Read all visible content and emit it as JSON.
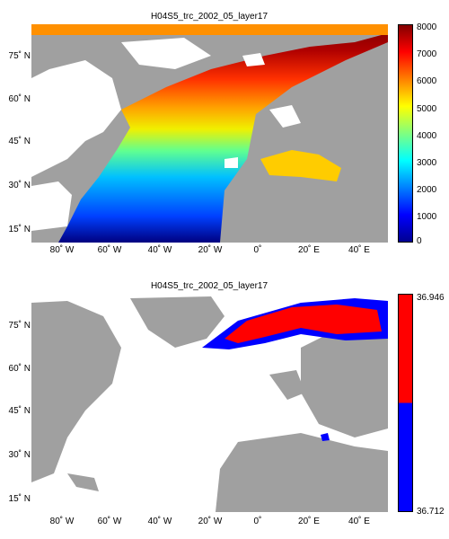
{
  "chart_data": [
    {
      "type": "map",
      "title": "H04S5_trc_2002_05_layer17",
      "y_ticks": [
        {
          "value": 75,
          "label": "75˚ N"
        },
        {
          "value": 60,
          "label": "60˚ N"
        },
        {
          "value": 45,
          "label": "45˚ N"
        },
        {
          "value": 30,
          "label": "30˚ N"
        },
        {
          "value": 15,
          "label": "15˚ N"
        }
      ],
      "x_ticks": [
        {
          "value": -80,
          "label": "80˚ W"
        },
        {
          "value": -60,
          "label": "60˚ W"
        },
        {
          "value": -40,
          "label": "40˚ W"
        },
        {
          "value": -20,
          "label": "20˚ W"
        },
        {
          "value": 0,
          "label": "0˚"
        },
        {
          "value": 20,
          "label": "20˚ E"
        },
        {
          "value": 40,
          "label": "40˚ E"
        }
      ],
      "lon_range": [
        -90,
        50
      ],
      "lat_range": [
        10,
        85
      ],
      "colorbar": {
        "colormap": "jet",
        "range": [
          0,
          8000
        ],
        "ticks": [
          "8000",
          "7000",
          "6000",
          "5000",
          "4000",
          "3000",
          "2000",
          "1000",
          "0"
        ]
      },
      "land_color": "#a0a0a0",
      "nodata_color": "#ffffff"
    },
    {
      "type": "map",
      "title": "H04S5_trc_2002_05_layer17",
      "y_ticks": [
        {
          "value": 75,
          "label": "75˚ N"
        },
        {
          "value": 60,
          "label": "60˚ N"
        },
        {
          "value": 45,
          "label": "45˚ N"
        },
        {
          "value": 30,
          "label": "30˚ N"
        },
        {
          "value": 15,
          "label": "15˚ N"
        }
      ],
      "x_ticks": [
        {
          "value": -80,
          "label": "80˚ W"
        },
        {
          "value": -60,
          "label": "60˚ W"
        },
        {
          "value": -40,
          "label": "40˚ W"
        },
        {
          "value": -20,
          "label": "20˚ W"
        },
        {
          "value": 0,
          "label": "0˚"
        },
        {
          "value": 20,
          "label": "20˚ E"
        },
        {
          "value": 40,
          "label": "40˚ E"
        }
      ],
      "lon_range": [
        -90,
        50
      ],
      "lat_range": [
        10,
        85
      ],
      "colorbar": {
        "colors": [
          "#0000ff",
          "#ff0000"
        ],
        "range": [
          36.712,
          36.946
        ],
        "ticks": [
          "36.946",
          "36.712"
        ]
      },
      "land_color": "#a0a0a0",
      "nodata_color": "#ffffff"
    }
  ]
}
